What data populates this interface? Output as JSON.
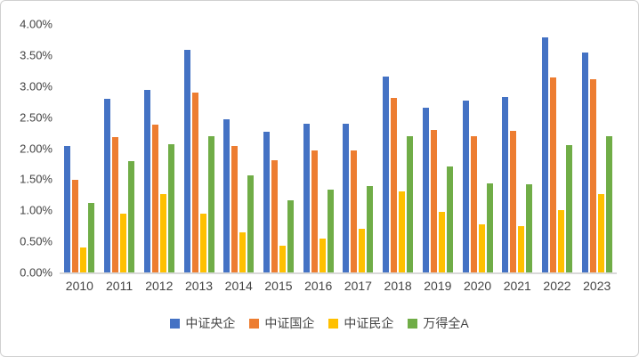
{
  "chart_data": {
    "type": "bar",
    "title": "",
    "categories": [
      "2010",
      "2011",
      "2012",
      "2013",
      "2014",
      "2015",
      "2016",
      "2017",
      "2018",
      "2019",
      "2020",
      "2021",
      "2022",
      "2023"
    ],
    "series": [
      {
        "name": "中证央企",
        "color": "#4472C4",
        "values": [
          2.03,
          2.8,
          2.94,
          3.58,
          2.46,
          2.27,
          2.39,
          2.39,
          3.16,
          2.65,
          2.77,
          2.82,
          3.78,
          3.54
        ]
      },
      {
        "name": "中证国企",
        "color": "#ED7D31",
        "values": [
          1.49,
          2.18,
          2.38,
          2.9,
          2.04,
          1.8,
          1.96,
          1.97,
          2.81,
          2.29,
          2.19,
          2.28,
          3.14,
          3.11
        ]
      },
      {
        "name": "中证民企",
        "color": "#FFC000",
        "values": [
          0.4,
          0.95,
          1.26,
          0.94,
          0.65,
          0.43,
          0.55,
          0.7,
          1.3,
          0.98,
          0.77,
          0.75,
          1.01,
          1.26
        ]
      },
      {
        "name": "万得全A",
        "color": "#70AD47",
        "values": [
          1.12,
          1.79,
          2.06,
          2.2,
          1.57,
          1.16,
          1.33,
          1.39,
          2.19,
          1.71,
          1.44,
          1.42,
          2.05,
          2.19
        ]
      }
    ],
    "xlabel": "",
    "ylabel": "",
    "ylim": [
      0,
      4.0
    ],
    "ytick_step": 0.5,
    "ytick_labels": [
      "0.00%",
      "0.50%",
      "1.00%",
      "1.50%",
      "2.00%",
      "2.50%",
      "3.00%",
      "3.50%",
      "4.00%"
    ],
    "grid": false,
    "legend_position": "bottom"
  },
  "colors": {
    "frame_border": "#D0D0D0",
    "axis_line": "#D9D9D9",
    "axis_text": "#444444"
  }
}
